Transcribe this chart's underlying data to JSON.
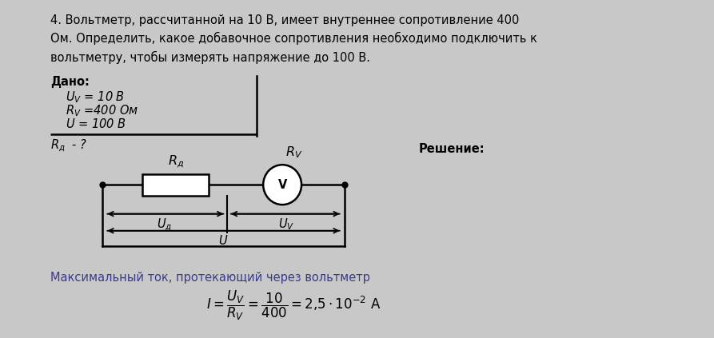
{
  "background_color": "#c8c8c8",
  "page_color": "#ffffff",
  "title_text": "4. Вольтметр, рассчитанной на 10 В, имеет внутреннее сопротивление 400\nОм. Определить, какое добавочное сопротивления необходимо подключить к\nвольтметру, чтобы измерять напряжение до 100 В.",
  "dado_label": "Дано:",
  "dado_line1": "$U_V$ = 10 В",
  "dado_line2": "$R_V$ =400 Ом",
  "dado_line3": "$U$ = 100 В",
  "question_line": "$R_д$  - ?",
  "resheniye_label": "Решение:",
  "max_tok_text": "Максимальный ток, протекающий через вольтметр",
  "formula_text": "$I = \\dfrac{U_V}{R_V} = \\dfrac{10}{400} = 2{,}5 \\cdot 10^{-2}$ А",
  "font_size_main": 10.5,
  "font_size_formula": 12,
  "text_color": "#000000",
  "dado_color": "#3a3a8c",
  "max_tok_color": "#3a3a8c"
}
